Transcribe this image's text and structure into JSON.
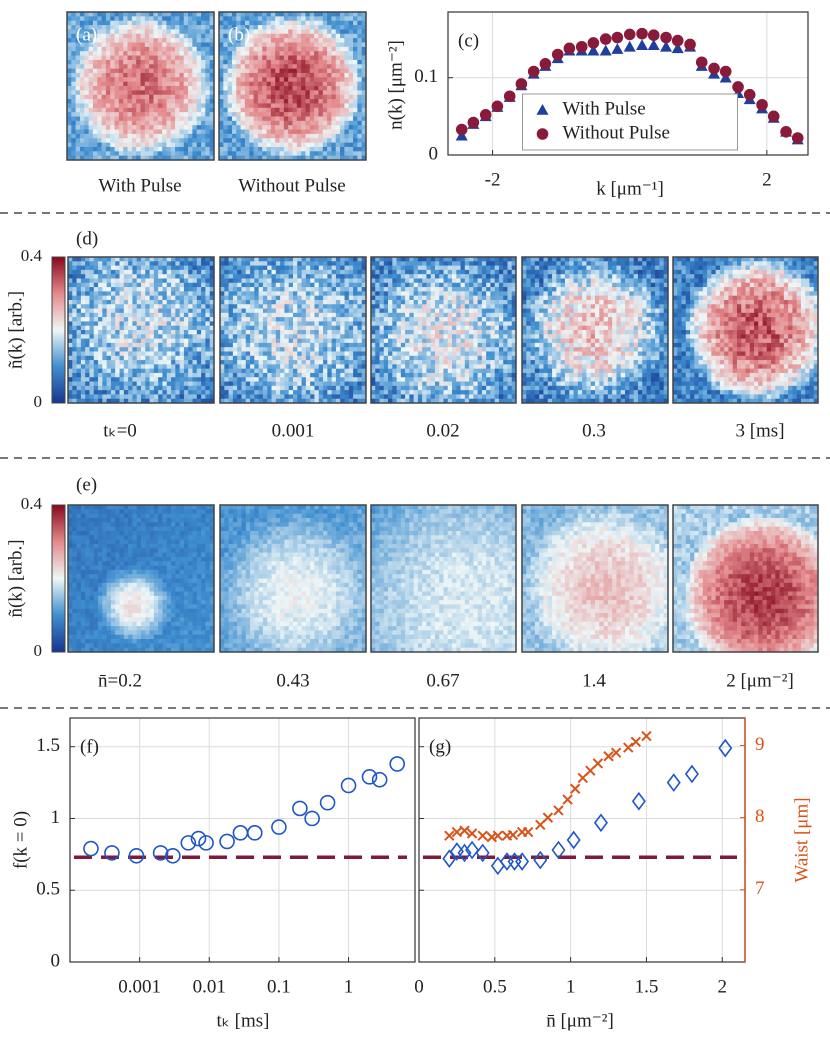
{
  "image_panels": {
    "a": {
      "label": "(a)",
      "caption": "With Pulse"
    },
    "b": {
      "label": "(b)",
      "caption": "Without Pulse"
    },
    "d": {
      "label": "(d)",
      "colorbar_label": "ñ(k) [arb.]",
      "colorbar_ticks": [
        0,
        0.4
      ],
      "captions": [
        "tₖ=0",
        "0.001",
        "0.02",
        "0.3",
        "3 [ms]"
      ]
    },
    "e": {
      "label": "(e)",
      "colorbar_label": "ñ(k) [arb.]",
      "colorbar_ticks": [
        0,
        0.4
      ],
      "captions": [
        "n̄=0.2",
        "0.43",
        "0.67",
        "1.4",
        "2 [μm⁻²]"
      ]
    }
  },
  "chart_data": [
    {
      "type": "scatter",
      "label": "(c)",
      "xlabel": "k [μm⁻¹]",
      "ylabel": "n(k) [μm⁻²]",
      "x": [
        -2.45,
        -2.28,
        -2.1,
        -1.93,
        -1.75,
        -1.58,
        -1.4,
        -1.23,
        -1.05,
        -0.88,
        -0.7,
        -0.53,
        -0.35,
        -0.18,
        0,
        0.18,
        0.35,
        0.53,
        0.7,
        0.88,
        1.05,
        1.23,
        1.4,
        1.58,
        1.75,
        1.93,
        2.1,
        2.28,
        2.45
      ],
      "xlim": [
        -2.65,
        2.6
      ],
      "xticks": [
        -2,
        2
      ],
      "ylim": [
        0,
        0.185
      ],
      "yticks": [
        0,
        0.1
      ],
      "grid": true,
      "legend": "lower center",
      "series": [
        {
          "name": "With Pulse",
          "color": "#1f3f9f",
          "marker": "triangle",
          "values": [
            0.025,
            0.04,
            0.05,
            0.062,
            0.075,
            0.09,
            0.105,
            0.115,
            0.125,
            0.135,
            0.135,
            0.135,
            0.135,
            0.137,
            0.14,
            0.142,
            0.142,
            0.14,
            0.138,
            0.14,
            0.115,
            0.105,
            0.1,
            0.08,
            0.072,
            0.06,
            0.048,
            0.03,
            0.02
          ]
        },
        {
          "name": "Without Pulse",
          "color": "#8a1a3a",
          "marker": "circle",
          "values": [
            0.033,
            0.042,
            0.052,
            0.063,
            0.076,
            0.092,
            0.108,
            0.118,
            0.13,
            0.138,
            0.14,
            0.145,
            0.15,
            0.152,
            0.156,
            0.157,
            0.155,
            0.152,
            0.148,
            0.143,
            0.12,
            0.112,
            0.108,
            0.088,
            0.078,
            0.065,
            0.05,
            0.03,
            0.022
          ]
        }
      ]
    },
    {
      "type": "scatter",
      "label": "(f)",
      "xlabel": "tₖ [ms]",
      "ylabel": "f(k = 0)",
      "xscale": "log",
      "xlim": [
        0.0001,
        9
      ],
      "xticks": [
        0.001,
        0.01,
        0.1,
        1
      ],
      "ylim": [
        0,
        1.7
      ],
      "yticks": [
        0,
        0.5,
        1,
        1.5
      ],
      "grid": true,
      "reference_line": 0.73,
      "reference_color": "#7f1a3c",
      "series": [
        {
          "color": "#1f56c8",
          "marker": "circle",
          "x": [
            0.0002,
            0.0004,
            0.0009,
            0.002,
            0.003,
            0.005,
            0.007,
            0.009,
            0.018,
            0.028,
            0.045,
            0.1,
            0.2,
            0.3,
            0.5,
            1,
            2,
            2.8,
            5
          ],
          "values": [
            0.79,
            0.76,
            0.74,
            0.76,
            0.74,
            0.83,
            0.86,
            0.83,
            0.84,
            0.9,
            0.9,
            0.94,
            1.07,
            1.0,
            1.11,
            1.23,
            1.29,
            1.27,
            1.38
          ]
        }
      ]
    },
    {
      "type": "scatter",
      "label": "(g)",
      "xlabel": "n̄ [μm⁻²]",
      "y2label": "Waist [μm]",
      "xlim": [
        0,
        2.15
      ],
      "xticks": [
        0,
        0.5,
        1,
        1.5,
        2
      ],
      "ylim": [
        0,
        1.7
      ],
      "yticks": [
        0,
        0.5,
        1,
        1.5
      ],
      "y2lim": [
        6,
        9.38
      ],
      "y2ticks": [
        7,
        8,
        9
      ],
      "y2color": "#d95319",
      "grid": true,
      "reference_line": 0.73,
      "reference_color": "#7f1a3c",
      "series": [
        {
          "color": "#1f56c8",
          "marker": "diamond",
          "x": [
            0.2,
            0.25,
            0.3,
            0.35,
            0.42,
            0.52,
            0.58,
            0.63,
            0.68,
            0.8,
            0.92,
            1.02,
            1.2,
            1.45,
            1.68,
            1.8,
            2.02
          ],
          "values": [
            0.72,
            0.77,
            0.76,
            0.78,
            0.76,
            0.67,
            0.7,
            0.7,
            0.7,
            0.71,
            0.78,
            0.85,
            0.97,
            1.12,
            1.25,
            1.31,
            1.49
          ]
        },
        {
          "color": "#d95319",
          "marker": "x",
          "axis": "y2",
          "x": [
            0.2,
            0.25,
            0.3,
            0.35,
            0.42,
            0.48,
            0.52,
            0.58,
            0.62,
            0.68,
            0.72,
            0.8,
            0.85,
            0.92,
            0.98,
            1.03,
            1.08,
            1.13,
            1.18,
            1.25,
            1.3,
            1.38,
            1.43,
            1.5
          ],
          "values": [
            7.75,
            7.8,
            7.82,
            7.78,
            7.75,
            7.73,
            7.75,
            7.75,
            7.76,
            7.8,
            7.8,
            7.9,
            8.0,
            8.1,
            8.25,
            8.4,
            8.55,
            8.65,
            8.75,
            8.85,
            8.9,
            8.97,
            9.05,
            9.13
          ]
        }
      ]
    }
  ]
}
